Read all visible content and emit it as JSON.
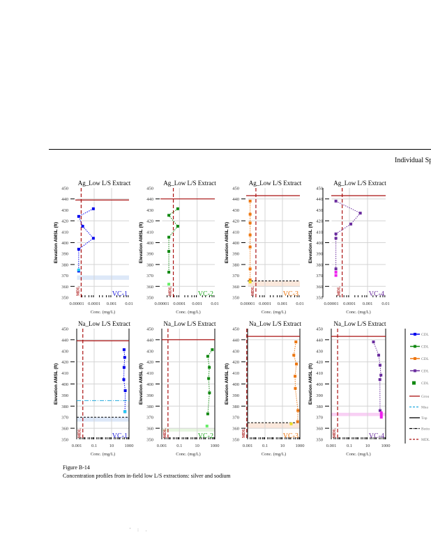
{
  "document": {
    "header_title": "Individual Sp",
    "caption_title": "Figure B-14",
    "caption_text": "Concentration profiles from in-field low L/S extractions: silver and sodium",
    "footer_marks": "' : ."
  },
  "legend": {
    "items": [
      {
        "label": "CDL",
        "style": "line-marker",
        "color": "#0000ee"
      },
      {
        "label": "CDL",
        "style": "line-marker",
        "color": "#118811"
      },
      {
        "label": "CDL",
        "style": "line-marker",
        "color": "#ee7711"
      },
      {
        "label": "CDL",
        "style": "line-marker",
        "color": "#6a2c9e"
      },
      {
        "label": "CDL",
        "style": "square",
        "color": "#118811"
      },
      {
        "label": "Grou",
        "style": "solid",
        "color": "#aa1111"
      },
      {
        "label": "Mea",
        "style": "dash",
        "color": "#22aadd"
      },
      {
        "label": "Top",
        "style": "solid",
        "color": "#000000"
      },
      {
        "label": "Botto",
        "style": "dashdot",
        "color": "#000000"
      },
      {
        "label": "MDL",
        "style": "dash",
        "color": "#aa1111"
      }
    ]
  },
  "chart_data": [
    {
      "type": "scatter",
      "title": "Ag_Low L/S Extract",
      "site": "VC-1",
      "site_color": "#2222dd",
      "color": "#0000ee",
      "ylabel": "Elevation AMSL (ft)",
      "xlabel": "Conc. (mg/L)",
      "xscale": "log",
      "xlim": [
        1e-05,
        0.01
      ],
      "ylim": [
        350,
        450
      ],
      "xticks": [
        "0.00001",
        "0.0001",
        "0.001",
        "0.01"
      ],
      "yticks": [
        350,
        360,
        370,
        380,
        390,
        400,
        410,
        420,
        430,
        440,
        450
      ],
      "ground_surface": 439,
      "mdl": 1.8e-05,
      "mdl_label": "MDL",
      "top": null,
      "bottom": null,
      "mean_water": null,
      "band": [
        366,
        370
      ],
      "band_color": "#dde8f8",
      "points": [
        {
          "x": 9e-05,
          "y": 431
        },
        {
          "x": 1.3e-05,
          "y": 424
        },
        {
          "x": 2.2e-05,
          "y": 415
        },
        {
          "x": 9e-05,
          "y": 404
        },
        {
          "x": 1.3e-05,
          "y": 394
        },
        {
          "x": 1.3e-05,
          "y": 374
        }
      ],
      "special_points": [
        {
          "x": 1.3e-05,
          "y": 375,
          "color": "#22ccee"
        }
      ]
    },
    {
      "type": "scatter",
      "title": "Ag_Low L/S Extract",
      "site": "VC-2",
      "site_color": "#22aa22",
      "color": "#118811",
      "ylabel": "Elevation AMSL (ft)",
      "xlabel": "Conc. (mg/L)",
      "xscale": "log",
      "xlim": [
        1e-05,
        0.01
      ],
      "ylim": [
        350,
        450
      ],
      "xticks": [
        "0.00001",
        "0.0001",
        "0.001",
        "0.01"
      ],
      "yticks": [
        350,
        360,
        370,
        380,
        390,
        400,
        410,
        420,
        430,
        440,
        450
      ],
      "ground_surface": 440,
      "mdl": 4.5e-05,
      "mdl_label": "MDL",
      "top": null,
      "bottom": null,
      "mean_water": null,
      "band": null,
      "band_color": null,
      "points": [
        {
          "x": 8e-05,
          "y": 431
        },
        {
          "x": 2.5e-05,
          "y": 425
        },
        {
          "x": 8e-05,
          "y": 415
        },
        {
          "x": 2.5e-05,
          "y": 405
        },
        {
          "x": 2.5e-05,
          "y": 392
        },
        {
          "x": 2.5e-05,
          "y": 373
        }
      ],
      "special_points": [
        {
          "x": 2.5e-05,
          "y": 362,
          "color": "#66ee66"
        }
      ]
    },
    {
      "type": "scatter",
      "title": "Ag_Low L/S Extract",
      "site": "VC-3",
      "site_color": "#ee7711",
      "color": "#ee7711",
      "ylabel": "Elevation AMSL (ft)",
      "xlabel": "Conc. (mg/L)",
      "xscale": "log",
      "xlim": [
        1e-05,
        0.01
      ],
      "ylim": [
        350,
        450
      ],
      "xticks": [
        "0.00001",
        "0.0001",
        "0.001",
        "0.01"
      ],
      "yticks": [
        350,
        360,
        370,
        380,
        390,
        400,
        410,
        420,
        430,
        440,
        450
      ],
      "ground_surface": 443,
      "mdl": 3e-05,
      "mdl_label": "MDL",
      "top": null,
      "bottom": 365,
      "mean_water": null,
      "band": [
        360,
        365
      ],
      "band_color": "#fbe8dc",
      "points": [
        {
          "x": 1.4e-05,
          "y": 438
        },
        {
          "x": 1.4e-05,
          "y": 426
        },
        {
          "x": 1.4e-05,
          "y": 418
        },
        {
          "x": 1.4e-05,
          "y": 407
        },
        {
          "x": 1.4e-05,
          "y": 396
        },
        {
          "x": 1.4e-05,
          "y": 376
        },
        {
          "x": 1.4e-05,
          "y": 366
        }
      ],
      "special_points": [
        {
          "x": 1.4e-05,
          "y": 364,
          "color": "#eedd22"
        }
      ]
    },
    {
      "type": "scatter",
      "title": "Ag_Low L/S Extract",
      "site": "VC-4",
      "site_color": "#6a2c9e",
      "color": "#6a2c9e",
      "ylabel": "Elevation AMSL (ft)",
      "xlabel": "Conc. (mg/L)",
      "xscale": "log",
      "xlim": [
        1e-05,
        0.01
      ],
      "ylim": [
        350,
        450
      ],
      "xticks": [
        "0.00001",
        "0.0001",
        "0.001",
        "0.01"
      ],
      "yticks": [
        350,
        360,
        370,
        380,
        390,
        400,
        410,
        420,
        430,
        440,
        450
      ],
      "ground_surface": 443,
      "mdl": 4e-05,
      "mdl_label": "MDL",
      "top": null,
      "bottom": null,
      "mean_water": null,
      "band": null,
      "band_color": null,
      "points": [
        {
          "x": 1.8e-05,
          "y": 438
        },
        {
          "x": 0.0004,
          "y": 427
        },
        {
          "x": 0.00012,
          "y": 417
        },
        {
          "x": 1.8e-05,
          "y": 408
        },
        {
          "x": 1.8e-05,
          "y": 404
        },
        {
          "x": 1.8e-05,
          "y": 376
        }
      ],
      "special_points": [
        {
          "x": 1.8e-05,
          "y": 373,
          "color": "#ee22ee"
        },
        {
          "x": 1.8e-05,
          "y": 370,
          "color": "#ee22ee"
        }
      ]
    },
    {
      "type": "scatter",
      "title": "Na_Low L/S Extract",
      "site": "VC-1",
      "site_color": "#2222dd",
      "color": "#0000ee",
      "ylabel": "Elevation AMSL (ft)",
      "xlabel": "Conc. (mg/L)",
      "xscale": "log",
      "xlim": [
        0.001,
        1000
      ],
      "ylim": [
        350,
        450
      ],
      "xticks": [
        "0.001",
        "0.1",
        "10",
        "1000"
      ],
      "yticks": [
        350,
        360,
        370,
        380,
        390,
        400,
        410,
        420,
        430,
        440,
        450
      ],
      "ground_surface": 439,
      "mdl": 0.005,
      "mdl_label": "MDL",
      "top": null,
      "bottom": 370,
      "mean_water": 385,
      "band": [
        366,
        370
      ],
      "band_color": "#dde8f8",
      "points": [
        {
          "x": 270,
          "y": 431
        },
        {
          "x": 320,
          "y": 424
        },
        {
          "x": 270,
          "y": 415
        },
        {
          "x": 250,
          "y": 404
        },
        {
          "x": 370,
          "y": 394
        },
        {
          "x": 340,
          "y": 375
        }
      ],
      "special_points": [
        {
          "x": 340,
          "y": 375,
          "color": "#22ccee"
        }
      ]
    },
    {
      "type": "scatter",
      "title": "Na_Low L/S Extract",
      "site": "VC-2",
      "site_color": "#22aa22",
      "color": "#118811",
      "ylabel": "Elevation AMSL (ft)",
      "xlabel": "Conc. (mg/L)",
      "xscale": "log",
      "xlim": [
        0.001,
        1000
      ],
      "ylim": [
        350,
        450
      ],
      "xticks": [
        "0.001",
        "0.1",
        "10",
        "1000"
      ],
      "yticks": [
        350,
        360,
        370,
        380,
        390,
        400,
        410,
        420,
        430,
        440,
        450
      ],
      "ground_surface": 440,
      "mdl": 0.005,
      "mdl_label": "MDL",
      "top": null,
      "bottom": null,
      "mean_water": null,
      "band": [
        357,
        360
      ],
      "band_color": "#e6f6e0",
      "points": [
        {
          "x": 520,
          "y": 431
        },
        {
          "x": 160,
          "y": 425
        },
        {
          "x": 240,
          "y": 415
        },
        {
          "x": 200,
          "y": 405
        },
        {
          "x": 250,
          "y": 392
        },
        {
          "x": 160,
          "y": 373
        }
      ],
      "special_points": [
        {
          "x": 130,
          "y": 362,
          "color": "#66ee66"
        }
      ]
    },
    {
      "type": "scatter",
      "title": "Na_Low L/S Extract",
      "site": "VC-3",
      "site_color": "#ee7711",
      "color": "#ee7711",
      "ylabel": "Elevation AMSL (ft)",
      "xlabel": "Conc. (mg/L)",
      "xscale": "log",
      "xlim": [
        0.001,
        1000
      ],
      "ylim": [
        350,
        450
      ],
      "xticks": [
        "0.001",
        "0.1",
        "10",
        "1000"
      ],
      "yticks": [
        350,
        360,
        370,
        380,
        390,
        400,
        410,
        420,
        430,
        440,
        450
      ],
      "ground_surface": 443,
      "mdl": 0.0008,
      "mdl_label": "MDL",
      "top": null,
      "bottom": 365,
      "mean_water": null,
      "band": [
        360,
        365
      ],
      "band_color": "#fbe8dc",
      "points": [
        {
          "x": 350,
          "y": 438
        },
        {
          "x": 200,
          "y": 426
        },
        {
          "x": 400,
          "y": 418
        },
        {
          "x": 280,
          "y": 407
        },
        {
          "x": 300,
          "y": 396
        },
        {
          "x": 600,
          "y": 376
        },
        {
          "x": 550,
          "y": 366
        }
      ],
      "special_points": [
        {
          "x": 100,
          "y": 364,
          "color": "#eedd22"
        }
      ]
    },
    {
      "type": "scatter",
      "title": "Na_Low L/S Extract",
      "site": "VC-4",
      "site_color": "#6a2c9e",
      "color": "#6a2c9e",
      "ylabel": "Elevation AMSL (ft)",
      "xlabel": "Conc. (mg/L)",
      "xscale": "log",
      "xlim": [
        0.001,
        1000
      ],
      "ylim": [
        350,
        450
      ],
      "xticks": [
        "0.001",
        "0.1",
        "10",
        "1000"
      ],
      "yticks": [
        350,
        360,
        370,
        380,
        390,
        400,
        410,
        420,
        430,
        440,
        450
      ],
      "ground_surface": 443,
      "mdl": 0.005,
      "mdl_label": "MDL",
      "top": null,
      "bottom": null,
      "mean_water": null,
      "band": [
        371,
        374
      ],
      "band_color": "#f8d0f4",
      "points": [
        {
          "x": 45,
          "y": 438
        },
        {
          "x": 170,
          "y": 426
        },
        {
          "x": 240,
          "y": 417
        },
        {
          "x": 300,
          "y": 408
        },
        {
          "x": 230,
          "y": 404
        },
        {
          "x": 240,
          "y": 376
        }
      ],
      "special_points": [
        {
          "x": 330,
          "y": 374,
          "color": "#ee22ee"
        },
        {
          "x": 330,
          "y": 372,
          "color": "#ee22ee"
        },
        {
          "x": 330,
          "y": 370,
          "color": "#ee22ee"
        }
      ]
    }
  ]
}
